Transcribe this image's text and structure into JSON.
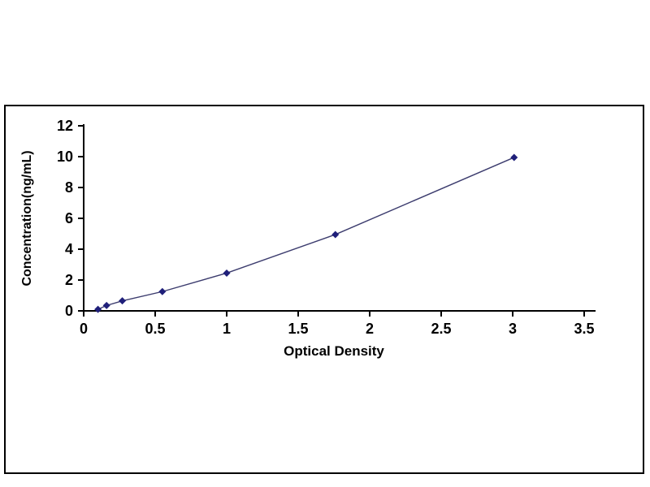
{
  "page": {
    "background": "#ffffff"
  },
  "chart_data": {
    "type": "line",
    "title": "",
    "xlabel": "Optical Density",
    "ylabel": "Concentration(ng/mL)",
    "x": [
      0.1,
      0.16,
      0.27,
      0.55,
      1.0,
      1.76,
      3.01
    ],
    "y": [
      0.1,
      0.35,
      0.65,
      1.25,
      2.45,
      4.95,
      9.95
    ],
    "xlim": [
      0,
      3.5
    ],
    "ylim": [
      0,
      12
    ],
    "xtick_values": [
      0,
      0.5,
      1,
      1.5,
      2,
      2.5,
      3,
      3.5
    ],
    "xtick_labels": [
      "0",
      "0.5",
      "1",
      "1.5",
      "2",
      "2.5",
      "3",
      "3.5"
    ],
    "ytick_values": [
      0,
      2,
      4,
      6,
      8,
      10,
      12
    ],
    "ytick_labels": [
      "0",
      "2",
      "4",
      "6",
      "8",
      "10",
      "12"
    ],
    "grid": false,
    "legend": null,
    "marker": "diamond",
    "line_color": "#3c3c6e",
    "marker_color": "#1f1f7a",
    "axis_color": "#000000",
    "frame_color": "#000000"
  }
}
